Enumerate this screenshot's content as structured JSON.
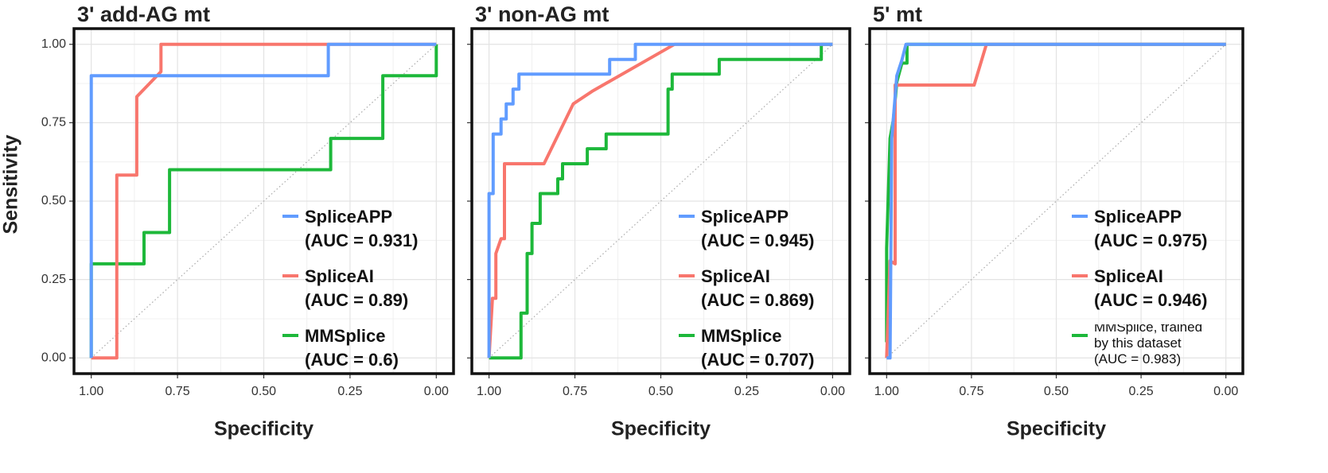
{
  "chart_data": [
    {
      "type": "line",
      "title": "3' add-AG mt",
      "xlabel": "Specificity",
      "ylabel": "Sensitivity",
      "xlim": [
        1.05,
        -0.05
      ],
      "ylim": [
        -0.05,
        1.05
      ],
      "grid": true,
      "xticks": [
        {
          "value": 1,
          "label": "1.00"
        },
        {
          "value": 0.75,
          "label": "0.75"
        },
        {
          "value": 0.5,
          "label": "0.50"
        },
        {
          "value": 0.25,
          "label": "0.25"
        },
        {
          "value": 0,
          "label": "0.00"
        }
      ],
      "yticks": [
        {
          "value": 0,
          "label": "0.00"
        },
        {
          "value": 0.25,
          "label": "0.25"
        },
        {
          "value": 0.5,
          "label": "0.50"
        },
        {
          "value": 0.75,
          "label": "0.75"
        },
        {
          "value": 1,
          "label": "1.00"
        }
      ],
      "series": [
        {
          "name": "SpliceAPP",
          "auc": "(AUC = 0.931)",
          "color": "#619CFF",
          "x": [
            1,
            1,
            0.313,
            0.313,
            0
          ],
          "values": [
            0,
            0.9,
            0.9,
            1,
            1
          ]
        },
        {
          "name": "SpliceAI",
          "auc": "(AUC = 0.89)",
          "color": "#F8766D",
          "x": [
            1,
            0.926,
            0.926,
            0.868,
            0.868,
            0.798,
            0.798,
            0
          ],
          "values": [
            0,
            0,
            0.583,
            0.583,
            0.833,
            0.913,
            1,
            1
          ]
        },
        {
          "name": "MMSplice",
          "auc": "(AUC = 0.6)",
          "color": "#1DB83A",
          "x": [
            1,
            1,
            0.847,
            0.847,
            0.773,
            0.773,
            0.306,
            0.306,
            0.155,
            0.155,
            0,
            0
          ],
          "values": [
            0,
            0.3,
            0.3,
            0.4,
            0.4,
            0.6,
            0.6,
            0.7,
            0.7,
            0.9,
            0.9,
            1
          ]
        }
      ]
    },
    {
      "type": "line",
      "title": "3' non-AG mt",
      "xlabel": "Specificity",
      "xlim": [
        1.05,
        -0.05
      ],
      "ylim": [
        -0.05,
        1.05
      ],
      "grid": true,
      "xticks": [
        {
          "value": 1,
          "label": "1.00"
        },
        {
          "value": 0.75,
          "label": "0.75"
        },
        {
          "value": 0.5,
          "label": "0.50"
        },
        {
          "value": 0.25,
          "label": "0.25"
        },
        {
          "value": 0,
          "label": "0.00"
        }
      ],
      "series": [
        {
          "name": "SpliceAPP",
          "auc": "(AUC = 0.945)",
          "color": "#619CFF",
          "x": [
            1,
            1,
            0.988,
            0.988,
            0.965,
            0.965,
            0.95,
            0.95,
            0.93,
            0.93,
            0.913,
            0.913,
            0.649,
            0.649,
            0.574,
            0.574,
            0
          ],
          "values": [
            0,
            0.524,
            0.524,
            0.714,
            0.714,
            0.762,
            0.762,
            0.81,
            0.81,
            0.857,
            0.857,
            0.905,
            0.905,
            0.952,
            0.952,
            1,
            1
          ]
        },
        {
          "name": "SpliceAI",
          "auc": "(AUC = 0.869)",
          "color": "#F8766D",
          "x": [
            1,
            0.99,
            0.98,
            0.98,
            0.965,
            0.955,
            0.955,
            0.84,
            0.755,
            0.7,
            0.46,
            0
          ],
          "values": [
            0,
            0.19,
            0.19,
            0.333,
            0.38,
            0.38,
            0.619,
            0.619,
            0.81,
            0.85,
            1,
            1
          ]
        },
        {
          "name": "MMSplice",
          "auc": "(AUC = 0.707)",
          "color": "#1DB83A",
          "x": [
            1,
            0.907,
            0.907,
            0.889,
            0.889,
            0.875,
            0.875,
            0.851,
            0.851,
            0.8,
            0.8,
            0.786,
            0.786,
            0.714,
            0.714,
            0.659,
            0.659,
            0.479,
            0.479,
            0.467,
            0.467,
            0.33,
            0.33,
            0.033,
            0.033,
            0
          ],
          "values": [
            0,
            0,
            0.143,
            0.143,
            0.333,
            0.333,
            0.429,
            0.429,
            0.524,
            0.524,
            0.571,
            0.571,
            0.619,
            0.619,
            0.667,
            0.667,
            0.714,
            0.714,
            0.857,
            0.857,
            0.905,
            0.905,
            0.952,
            0.952,
            1,
            1
          ]
        }
      ]
    },
    {
      "type": "line",
      "title": "5' mt",
      "xlabel": "Specificity",
      "xlim": [
        1.05,
        -0.05
      ],
      "ylim": [
        -0.05,
        1.05
      ],
      "grid": true,
      "xticks": [
        {
          "value": 1,
          "label": "1.00"
        },
        {
          "value": 0.75,
          "label": "0.75"
        },
        {
          "value": 0.5,
          "label": "0.50"
        },
        {
          "value": 0.25,
          "label": "0.25"
        },
        {
          "value": 0,
          "label": "0.00"
        }
      ],
      "series": [
        {
          "name": "SpliceAPP",
          "auc": "(AUC = 0.975)",
          "color": "#619CFF",
          "x": [
            1,
            0.99,
            0.985,
            0.97,
            0.955,
            0.943,
            0
          ],
          "values": [
            0,
            0,
            0.7,
            0.9,
            0.95,
            1,
            1
          ]
        },
        {
          "name": "SpliceAI",
          "auc": "(AUC = 0.946)",
          "color": "#F8766D",
          "x": [
            1,
            0.99,
            0.975,
            0.975,
            0.742,
            0.706,
            0
          ],
          "values": [
            0,
            0.31,
            0.3,
            0.87,
            0.87,
            1,
            1
          ]
        },
        {
          "name": "MMSplice, trained by this dataset",
          "auc": "(AUC = 0.983)",
          "color": "#1DB83A",
          "x": [
            1,
            1,
            0.99,
            0.98,
            0.97,
            0.955,
            0.94,
            0.94,
            0
          ],
          "values": [
            0.05,
            0.35,
            0.7,
            0.76,
            0.88,
            0.94,
            0.94,
            1,
            1
          ]
        }
      ]
    }
  ]
}
